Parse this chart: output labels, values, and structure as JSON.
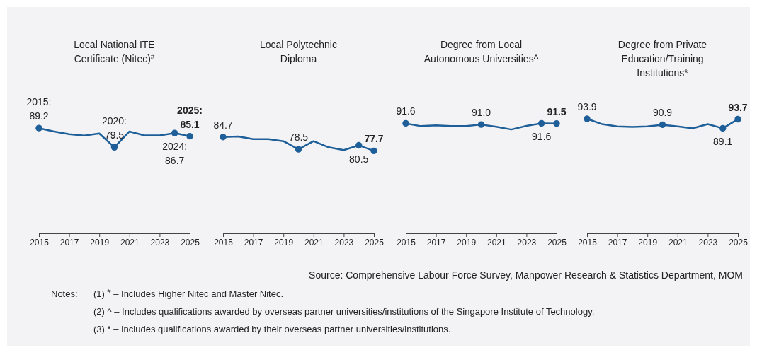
{
  "chart_data": [
    {
      "type": "line",
      "title": "Local National ITE\nCertificate (Nitec)$^{#}$",
      "x": [
        2015,
        2016,
        2017,
        2018,
        2019,
        2020,
        2021,
        2022,
        2023,
        2024,
        2025
      ],
      "xlim": [
        2015,
        2025
      ],
      "xticks": [
        2015,
        2017,
        2019,
        2021,
        2023,
        2025
      ],
      "tick_labels": "x",
      "series": [
        {
          "color": "#1f5f99",
          "values": [
            89.2,
            87.5,
            86.1,
            85.4,
            86.5,
            79.5,
            87.5,
            85.5,
            85.5,
            86.7,
            85.1
          ],
          "value_labels": [
            "2015:\n89.2",
            null,
            null,
            null,
            null,
            "2020:\n79.5",
            null,
            null,
            null,
            "2024:\n86.7",
            "2025:\n85.1"
          ]
        }
      ]
    },
    {
      "type": "line",
      "title": "Local Polytechnic\nDiploma",
      "x": [
        2015,
        2016,
        2017,
        2018,
        2019,
        2020,
        2021,
        2022,
        2023,
        2024,
        2025
      ],
      "xlim": [
        2015,
        2025
      ],
      "xticks": [
        2015,
        2017,
        2019,
        2021,
        2023,
        2025
      ],
      "tick_labels": "x",
      "series": [
        {
          "color": "#1f5f99",
          "values": [
            84.7,
            85.0,
            83.6,
            83.6,
            82.6,
            78.5,
            82.6,
            79.5,
            78.1,
            80.5,
            77.7
          ],
          "value_labels": [
            "84.7",
            null,
            null,
            null,
            null,
            "78.5",
            null,
            null,
            null,
            "80.5",
            "77.7"
          ]
        }
      ]
    },
    {
      "type": "line",
      "title": "Degree from Local\nAutonomous Universities^",
      "x": [
        2015,
        2016,
        2017,
        2018,
        2019,
        2020,
        2021,
        2022,
        2023,
        2024,
        2025
      ],
      "xlim": [
        2015,
        2025
      ],
      "xticks": [
        2015,
        2017,
        2019,
        2021,
        2023,
        2025
      ],
      "tick_labels": "x",
      "series": [
        {
          "color": "#1f5f99",
          "values": [
            91.6,
            90.2,
            90.6,
            90.2,
            90.2,
            91.0,
            89.9,
            88.5,
            90.3,
            91.6,
            91.5
          ],
          "value_labels": [
            "91.6",
            null,
            null,
            null,
            null,
            "91.0",
            null,
            null,
            null,
            "91.6",
            "91.5"
          ]
        }
      ]
    },
    {
      "type": "line",
      "title": "Degree from Private\nEducation/Training\nInstitutions*",
      "x": [
        2015,
        2016,
        2017,
        2018,
        2019,
        2020,
        2021,
        2022,
        2023,
        2024,
        2025
      ],
      "xlim": [
        2015,
        2025
      ],
      "xticks": [
        2015,
        2017,
        2019,
        2021,
        2023,
        2025
      ],
      "tick_labels": "x",
      "series": [
        {
          "color": "#1f5f99",
          "values": [
            93.9,
            91.2,
            90.1,
            89.8,
            90.1,
            90.9,
            90.1,
            89.1,
            91.2,
            89.1,
            93.7
          ],
          "value_labels": [
            "93.9",
            null,
            null,
            null,
            null,
            "90.9",
            null,
            null,
            null,
            "89.1",
            "93.7"
          ]
        }
      ],
      "annotations": [
        "Source: Comprehensive Labour Force Survey, Manpower Research & Statistics Department, MOM",
        "Notes:",
        "(1) $^{#}$ – Includes Higher Nitec and Master Nitec.",
        "(2) ^ – Includes qualifications awarded by overseas partner universities/institutions of the Singapore Institute of Technology.",
        "(3) * – Includes qualifications awarded by their overseas partner universities/institutions."
      ]
    }
  ]
}
